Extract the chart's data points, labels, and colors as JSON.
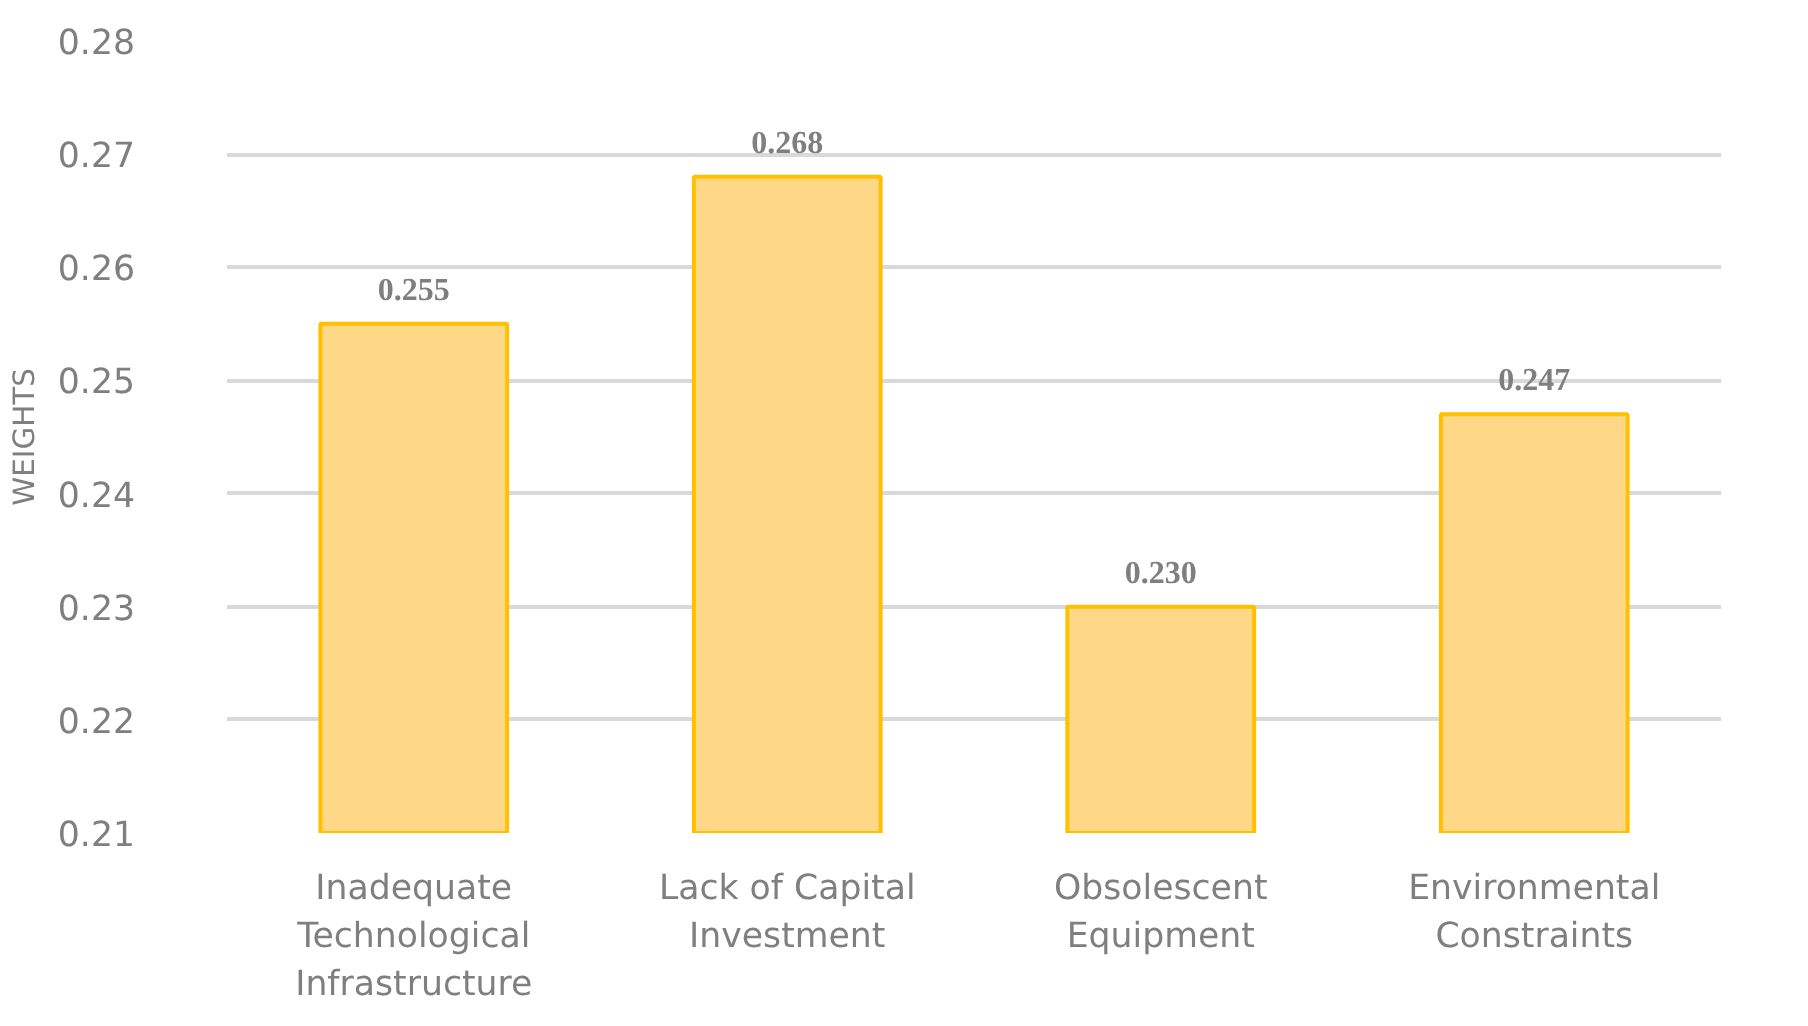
{
  "chart_data": {
    "type": "bar",
    "ylabel": "WEIGHTS",
    "categories": [
      "Inadequate Technological Infrastructure",
      "Lack of Capital Investment",
      "Obsolescent Equipment",
      "Environmental Constraints"
    ],
    "values": [
      0.255,
      0.268,
      0.23,
      0.247
    ],
    "value_labels": [
      "0.255",
      "0.268",
      "0.230",
      "0.247"
    ],
    "color": "#fed887",
    "ylim": [
      0.21,
      0.28
    ],
    "yticks": [
      0.21,
      0.22,
      0.23,
      0.24,
      0.25,
      0.26,
      0.27,
      0.28
    ],
    "grid": "y"
  }
}
